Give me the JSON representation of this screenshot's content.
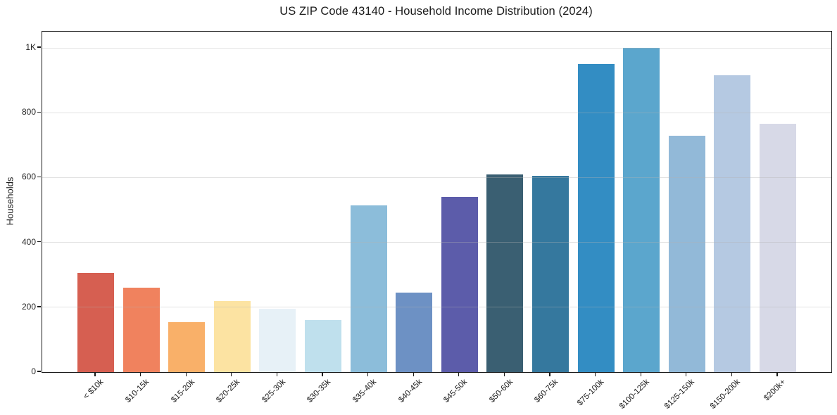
{
  "chart_data": {
    "type": "bar",
    "title": "US ZIP Code 43140 - Household Income Distribution (2024)",
    "xlabel": "",
    "ylabel": "Households",
    "categories": [
      "< $10k",
      "$10-15k",
      "$15-20k",
      "$20-25k",
      "$25-30k",
      "$30-35k",
      "$35-40k",
      "$40-45k",
      "$45-50k",
      "$50-60k",
      "$60-75k",
      "$75-100k",
      "$100-125k",
      "$125-150k",
      "$150-200k",
      "$200k+"
    ],
    "values": [
      305,
      260,
      155,
      220,
      195,
      160,
      515,
      245,
      540,
      610,
      605,
      950,
      1000,
      730,
      915,
      765
    ],
    "bar_colors": [
      "#d65f51",
      "#f0825e",
      "#f9b069",
      "#fce3a2",
      "#e7f1f7",
      "#bfe0ed",
      "#8cbdda",
      "#6d91c4",
      "#5c5caa",
      "#3a5f72",
      "#35789e",
      "#338dc3",
      "#5ba6cd",
      "#92b9d8",
      "#b5c9e2",
      "#d7d9e7"
    ],
    "ylim": [
      0,
      1050
    ],
    "y_ticks": {
      "values": [
        0,
        200,
        400,
        600,
        800,
        1000
      ],
      "labels": [
        "0",
        "200",
        "400",
        "600",
        "800",
        "1K"
      ]
    },
    "grid": "horizontal",
    "legend_position": "none",
    "frame_color": "#1a1a1a",
    "background_color": "#ffffff"
  }
}
